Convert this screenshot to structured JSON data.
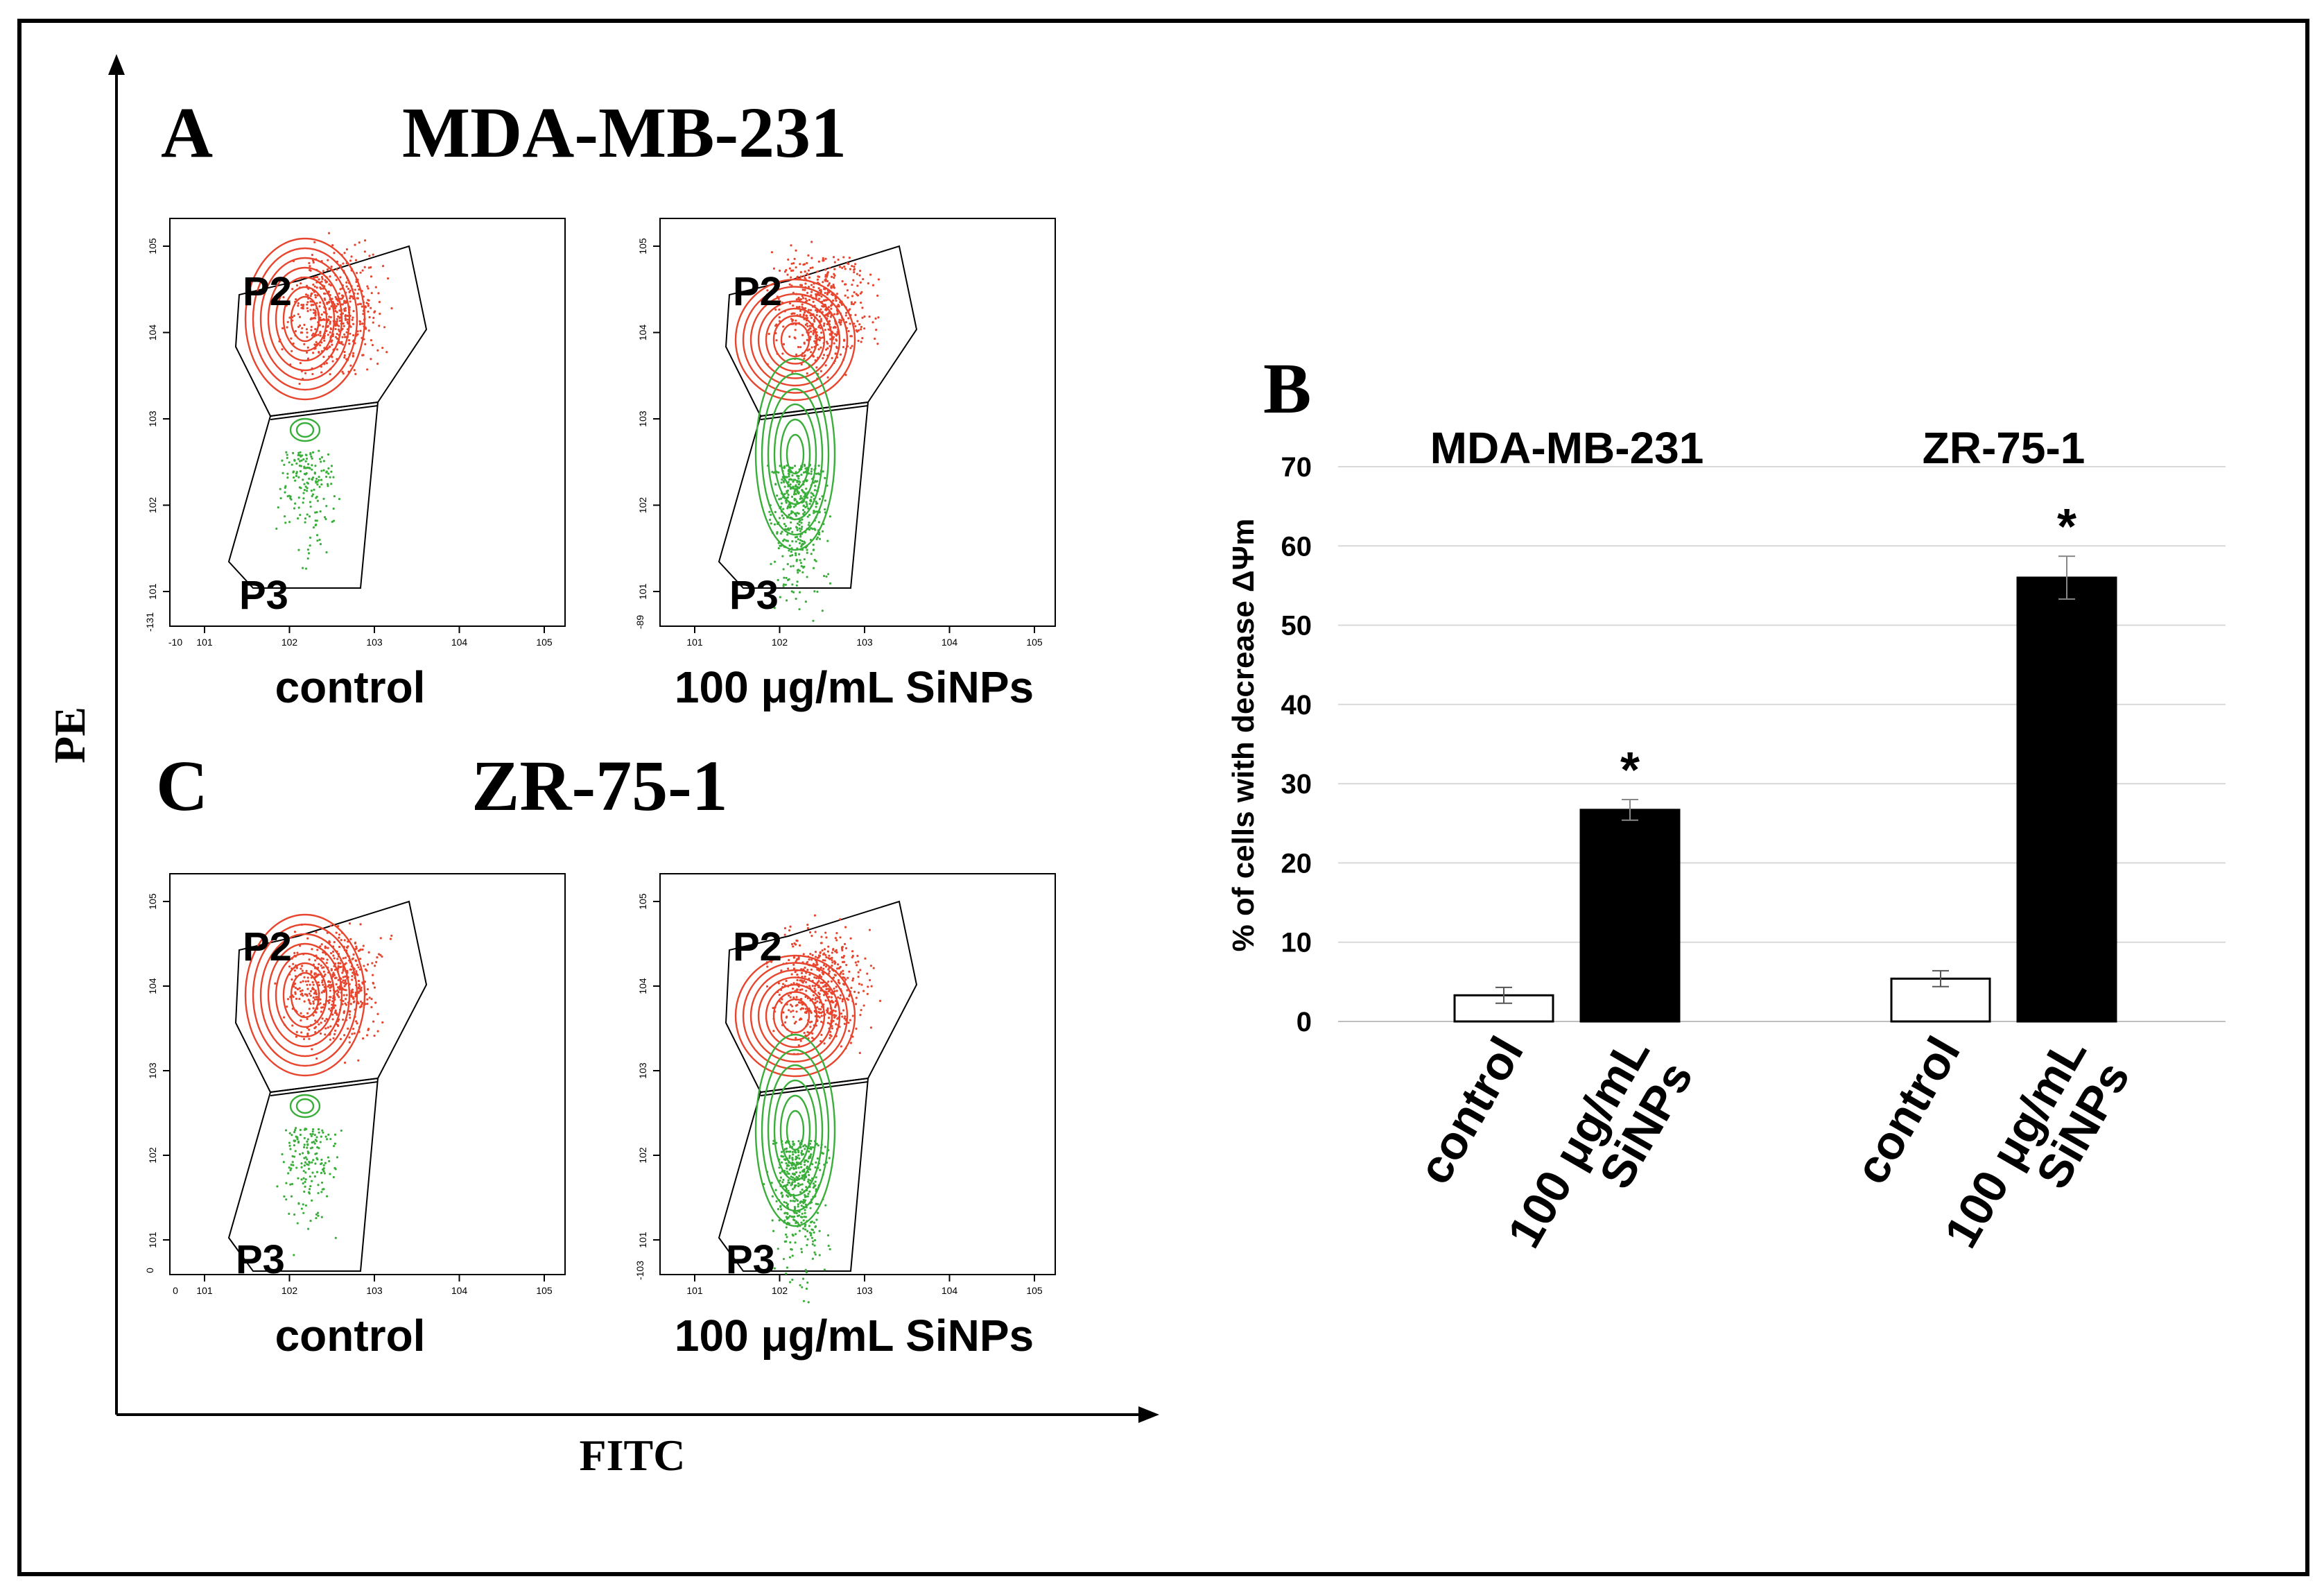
{
  "flow_panels": {
    "flow_x_axis_label": "FITC",
    "flow_y_axis_label": "PE",
    "decade_ticks": [
      "10^1",
      "10^2",
      "10^3",
      "10^4",
      "10^5"
    ],
    "gates": [
      "P2",
      "P3"
    ],
    "panel_a": {
      "letter": "A",
      "title": "MDA-MB-231",
      "plots": [
        {
          "label": "control",
          "x_min_tick": "-10",
          "y_min_tick": "-131"
        },
        {
          "label": "100 μg/mL SiNPs",
          "x_min_tick": "",
          "y_min_tick": "-89"
        }
      ]
    },
    "panel_c": {
      "letter": "C",
      "title": "ZR-75-1",
      "plots": [
        {
          "label": "control",
          "x_min_tick": "0",
          "y_min_tick": "0"
        },
        {
          "label": "100 μg/mL SiNPs",
          "x_min_tick": "",
          "y_min_tick": "-103"
        }
      ]
    }
  },
  "colors": {
    "p2": "#e8452e",
    "p3": "#3aae3a",
    "bar_treated": "#000000",
    "bar_control": "#ffffff",
    "grid": "#d9d9d9"
  },
  "chart_data": {
    "type": "bar",
    "panel_letter": "B",
    "title": "",
    "ylabel": "% of cells with decrease ΔΨm",
    "ylim": [
      0,
      70
    ],
    "yticks": [
      0,
      10,
      20,
      30,
      40,
      50,
      60,
      70
    ],
    "grid": true,
    "groups": [
      {
        "name": "MDA-MB-231",
        "bars": [
          {
            "category": "control",
            "value": 3.3,
            "error": 1.0,
            "significant": false
          },
          {
            "category": "100 μg/mL SiNPs",
            "value": 26.7,
            "error": 1.3,
            "significant": true
          }
        ]
      },
      {
        "name": "ZR-75-1",
        "bars": [
          {
            "category": "control",
            "value": 5.4,
            "error": 1.0,
            "significant": false
          },
          {
            "category": "100 μg/mL SiNPs",
            "value": 56.0,
            "error": 2.7,
            "significant": true
          }
        ]
      }
    ],
    "significance_marker": "*"
  }
}
